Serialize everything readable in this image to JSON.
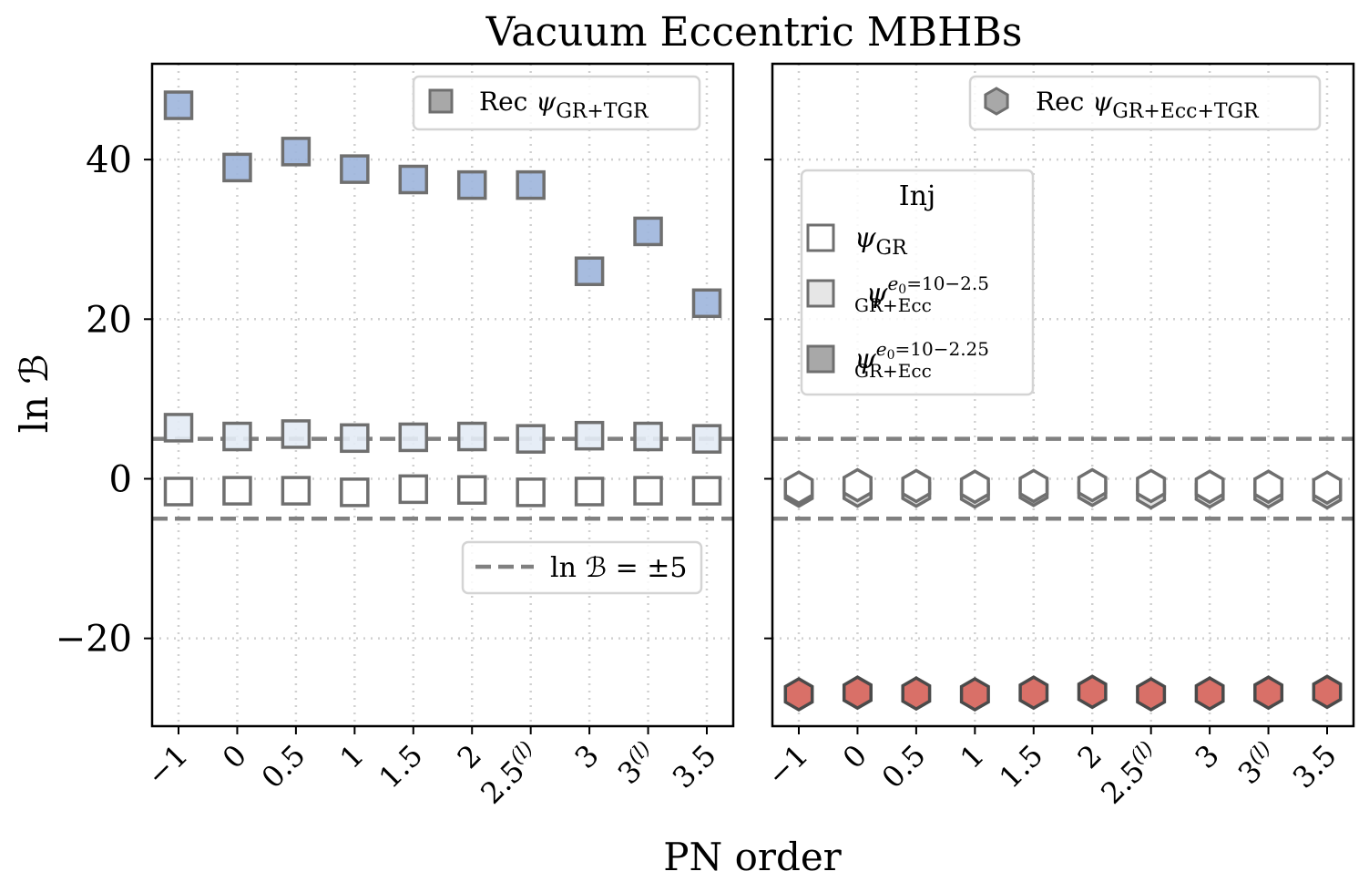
{
  "figure": {
    "title": "Vacuum Eccentric MBHBs",
    "xlabel": "PN order",
    "ylabel": "ln ℬ"
  },
  "chart_data": [
    {
      "type": "scatter",
      "panel": "left",
      "categories": [
        "−1",
        "0",
        "0.5",
        "1",
        "1.5",
        "2",
        "2.5(l)",
        "3",
        "3(l)",
        "3.5"
      ],
      "ylim": [
        -31,
        52
      ],
      "yticks": [
        -20,
        0,
        20,
        40
      ],
      "grid": true,
      "marker": "square",
      "legend_rec": {
        "label": "Rec ψGR+TGR",
        "placement": "top-right"
      },
      "legend_line": {
        "label": "ln ℬ = ±5",
        "placement": "right"
      },
      "threshold_lines": [
        5,
        -5
      ],
      "series": [
        {
          "name": "ψGR+Ecc e0=10^−2.25",
          "color": "#9db5dc",
          "values": [
            46.8,
            39.0,
            41.0,
            38.8,
            37.5,
            36.8,
            36.8,
            26.0,
            31.0,
            22.0
          ]
        },
        {
          "name": "ψGR+Ecc e0=10^−2.5",
          "color": "#e3ebf5",
          "values": [
            6.4,
            5.3,
            5.6,
            5.1,
            5.2,
            5.3,
            5.0,
            5.4,
            5.3,
            5.0
          ]
        },
        {
          "name": "ψGR",
          "color": "#ffffff",
          "values": [
            -1.6,
            -1.5,
            -1.5,
            -1.7,
            -1.3,
            -1.4,
            -1.7,
            -1.6,
            -1.5,
            -1.5
          ]
        }
      ]
    },
    {
      "type": "scatter",
      "panel": "right",
      "categories": [
        "−1",
        "0",
        "0.5",
        "1",
        "1.5",
        "2",
        "2.5(l)",
        "3",
        "3(l)",
        "3.5"
      ],
      "ylim": [
        -31,
        52
      ],
      "yticks": [
        -20,
        0,
        20,
        40
      ],
      "grid": true,
      "marker": "hexagon",
      "legend_rec": {
        "label": "Rec ψGR+Ecc+TGR",
        "placement": "top-right"
      },
      "legend_inj": {
        "title": "Inj",
        "placement": "upper-left",
        "entries": [
          "ψGR",
          "ψGR+Ecc e0=10^−2.5",
          "ψGR+Ecc e0=10^−2.25"
        ]
      },
      "threshold_lines": [
        5,
        -5
      ],
      "series": [
        {
          "name": "ψGR+Ecc e0=10^−2.5",
          "color": "#e0e0e0",
          "values": [
            -1.5,
            -1.5,
            -1.5,
            -1.6,
            -1.4,
            -1.4,
            -1.7,
            -1.6,
            -1.6,
            -1.7
          ]
        },
        {
          "name": "ψGR",
          "color": "#ffffff",
          "values": [
            -1.1,
            -0.8,
            -0.9,
            -1.0,
            -0.9,
            -0.8,
            -0.9,
            -1.0,
            -1.0,
            -1.1
          ]
        },
        {
          "name": "ψGR+Ecc e0=10^−2.25",
          "color": "#d97068",
          "values": [
            -27.0,
            -26.8,
            -26.9,
            -27.0,
            -26.8,
            -26.7,
            -27.0,
            -26.9,
            -26.8,
            -26.7
          ]
        }
      ]
    }
  ],
  "colors": {
    "edge": "#6f6f6f",
    "threshold": "#808080",
    "grid": "#d0d0d0",
    "legend_swatch_dark": "#a8a8a8",
    "legend_swatch_light": "#e6e6e6"
  }
}
